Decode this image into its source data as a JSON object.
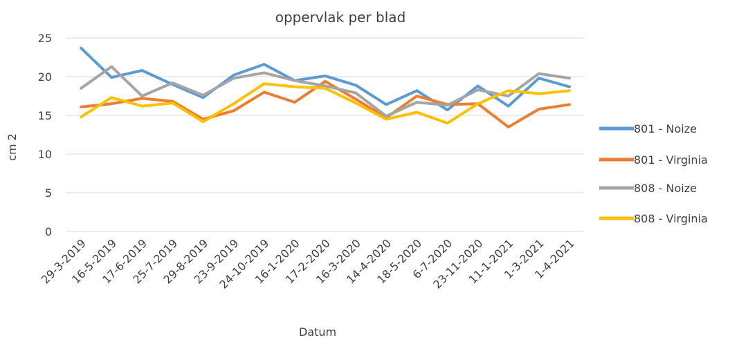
{
  "chart_data": {
    "type": "line",
    "title": "oppervlak per blad",
    "xlabel": "Datum",
    "ylabel": "cm 2",
    "ylim": [
      0,
      25
    ],
    "yticks": [
      0,
      5,
      10,
      15,
      20,
      25
    ],
    "grid": true,
    "legend_position": "right",
    "categories": [
      "29-3-2019",
      "16-5-2019",
      "17-6-2019",
      "25-7-2019",
      "29-8-2019",
      "23-9-2019",
      "24-10-2019",
      "16-1-2020",
      "17-2-2020",
      "16-3-2020",
      "14-4-2020",
      "18-5-2020",
      "6-7-2020",
      "23-11-2020",
      "11-1-2021",
      "1-3-2021",
      "1-4-2021"
    ],
    "series": [
      {
        "name": "801 - Noize",
        "color": "#5b9bd5",
        "values": [
          23.7,
          19.9,
          20.8,
          19.0,
          17.3,
          20.2,
          21.6,
          19.5,
          20.1,
          18.9,
          16.4,
          18.2,
          15.7,
          18.8,
          16.2,
          19.8,
          18.7
        ]
      },
      {
        "name": "801 - Virginia",
        "color": "#ed7d31",
        "values": [
          16.1,
          16.5,
          17.2,
          16.8,
          14.5,
          15.6,
          18.0,
          16.7,
          19.4,
          17.1,
          14.7,
          17.5,
          16.4,
          16.5,
          13.5,
          15.8,
          16.4
        ]
      },
      {
        "name": "808 - Noize",
        "color": "#a5a5a5",
        "values": [
          18.5,
          21.3,
          17.5,
          19.2,
          17.6,
          19.8,
          20.5,
          19.5,
          18.8,
          17.9,
          14.9,
          16.7,
          16.3,
          18.3,
          17.5,
          20.4,
          19.8
        ]
      },
      {
        "name": "808 - Virginia",
        "color": "#ffc000",
        "values": [
          14.8,
          17.3,
          16.2,
          16.6,
          14.2,
          16.5,
          19.1,
          18.7,
          18.5,
          16.6,
          14.5,
          15.4,
          14.0,
          16.5,
          18.2,
          17.8,
          18.2
        ]
      }
    ]
  }
}
